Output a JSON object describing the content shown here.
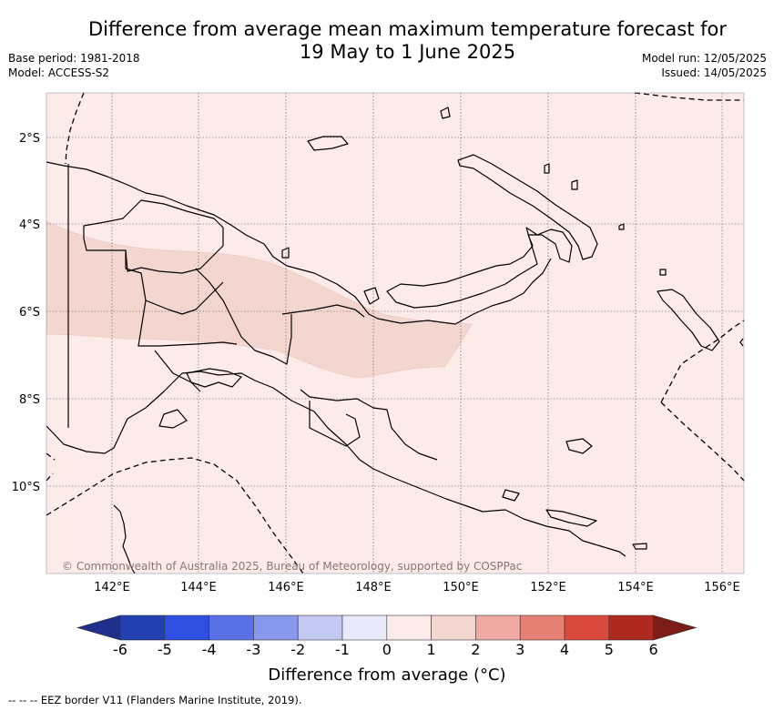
{
  "title_line1": "Difference from average mean maximum temperature forecast for",
  "title_line2": "19 May to 1 June 2025",
  "meta_left": {
    "base_period": "Base period: 1981-2018",
    "model": "Model: ACCESS-S2"
  },
  "meta_right": {
    "model_run": "Model run: 12/05/2025",
    "issued": "Issued: 14/05/2025"
  },
  "map": {
    "lat_labels": [
      "2°S",
      "4°S",
      "6°S",
      "8°S",
      "10°S"
    ],
    "lon_labels": [
      "142°E",
      "144°E",
      "146°E",
      "148°E",
      "150°E",
      "152°E",
      "154°E",
      "156°E"
    ],
    "background_color": "#fcebe8",
    "anomaly_color": "#f4d6d1",
    "copyright": "© Commonwealth of Australia 2025, Bureau of Meteorology, supported by COSPPac"
  },
  "colorbar": {
    "ticks": [
      "-6",
      "-5",
      "-4",
      "-3",
      "-2",
      "-1",
      "0",
      "1",
      "2",
      "3",
      "4",
      "5",
      "6"
    ],
    "colors": [
      "#1e2f8c",
      "#2340b3",
      "#2f4fe0",
      "#5a70e6",
      "#8898ec",
      "#c3c9f3",
      "#e8eafb",
      "#fcebe8",
      "#f4d6d1",
      "#efaaa3",
      "#e67f74",
      "#da4a3c",
      "#ae2a21",
      "#7a1d16"
    ],
    "label": "Difference from average (°C)"
  },
  "footnote": "-- -- -- EEZ border V11 (Flanders Marine Institute, 2019)."
}
